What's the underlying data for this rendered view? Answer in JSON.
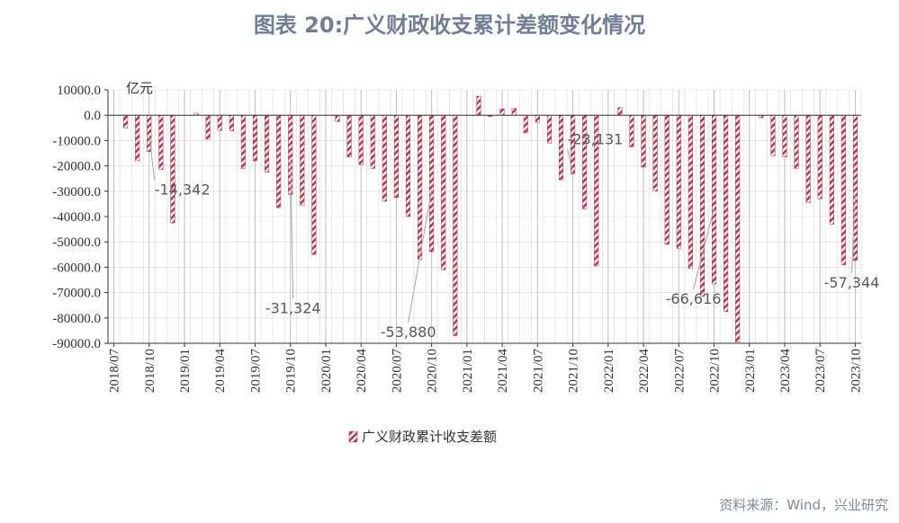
{
  "title": "图表 20:广义财政收支累计差额变化情况",
  "source": "资料来源：Wind，兴业研究",
  "colors": {
    "bar": "#c0344a",
    "axis": "#333333",
    "grid": "#d9d9d9",
    "annotation": "#808080",
    "title": "#6f7f94"
  },
  "chart_data": {
    "type": "bar",
    "unit": "亿元",
    "ylim": [
      -90000,
      10000
    ],
    "yticks": [
      10000,
      0,
      -10000,
      -20000,
      -30000,
      -40000,
      -50000,
      -60000,
      -70000,
      -80000,
      -90000
    ],
    "ytick_labels": [
      "10000.0",
      "0.0",
      "-10000.0",
      "-20000.0",
      "-30000.0",
      "-40000.0",
      "-50000.0",
      "-60000.0",
      "-70000.0",
      "-80000.0",
      "-90000.0"
    ],
    "xtick_labels": [
      "2018/07",
      "2018/10",
      "2019/01",
      "2019/04",
      "2019/07",
      "2019/10",
      "2020/01",
      "2020/04",
      "2020/07",
      "2020/10",
      "2021/01",
      "2021/04",
      "2021/07",
      "2021/10",
      "2022/01",
      "2022/04",
      "2022/07",
      "2022/10",
      "2023/01",
      "2023/04",
      "2023/07",
      "2023/10"
    ],
    "grid": true,
    "legend_position": "bottom",
    "series": [
      {
        "name": "广义财政累计收支差额",
        "categories": [
          "2018/07",
          "2018/08",
          "2018/09",
          "2018/10",
          "2018/11",
          "2018/12",
          "2019/01",
          "2019/02",
          "2019/03",
          "2019/04",
          "2019/05",
          "2019/06",
          "2019/07",
          "2019/08",
          "2019/09",
          "2019/10",
          "2019/11",
          "2019/12",
          "2020/01",
          "2020/02",
          "2020/03",
          "2020/04",
          "2020/05",
          "2020/06",
          "2020/07",
          "2020/08",
          "2020/09",
          "2020/10",
          "2020/11",
          "2020/12",
          "2021/01",
          "2021/02",
          "2021/03",
          "2021/04",
          "2021/05",
          "2021/06",
          "2021/07",
          "2021/08",
          "2021/09",
          "2021/10",
          "2021/11",
          "2021/12",
          "2022/01",
          "2022/02",
          "2022/03",
          "2022/04",
          "2022/05",
          "2022/06",
          "2022/07",
          "2022/08",
          "2022/09",
          "2022/10",
          "2022/11",
          "2022/12",
          "2023/01",
          "2023/02",
          "2023/03",
          "2023/04",
          "2023/05",
          "2023/06",
          "2023/07",
          "2023/08",
          "2023/09",
          "2023/10"
        ],
        "values": [
          null,
          -5000,
          -18000,
          -14342,
          -21500,
          -42500,
          null,
          800,
          -9500,
          -6000,
          -6200,
          -21000,
          -18000,
          -22500,
          -36500,
          -31324,
          -35500,
          -55000,
          null,
          -2500,
          -16500,
          -19500,
          -21000,
          -34000,
          -32500,
          -40000,
          -57000,
          -53880,
          -61000,
          -87000,
          null,
          7500,
          -500,
          2500,
          2800,
          -7000,
          -2800,
          -11000,
          -25500,
          -23131,
          -37000,
          -59500,
          null,
          3000,
          -12500,
          -20500,
          -30000,
          -51000,
          -52500,
          -60500,
          -71500,
          -66616,
          -77500,
          -89500,
          null,
          -1000,
          -16000,
          -16500,
          -21000,
          -34500,
          -33000,
          -43000,
          -59000,
          -57344
        ]
      }
    ],
    "annotations": [
      {
        "category": "2018/10",
        "label": "-14,342",
        "value": -14342
      },
      {
        "category": "2019/10",
        "label": "-31,324",
        "value": -31324
      },
      {
        "category": "2020/10",
        "label": "-53,880",
        "value": -53880
      },
      {
        "category": "2021/10",
        "label": "-23,131",
        "value": -23131
      },
      {
        "category": "2022/10",
        "label": "-66,616",
        "value": -66616
      },
      {
        "category": "2023/10",
        "label": "-57,344",
        "value": -57344
      }
    ]
  }
}
